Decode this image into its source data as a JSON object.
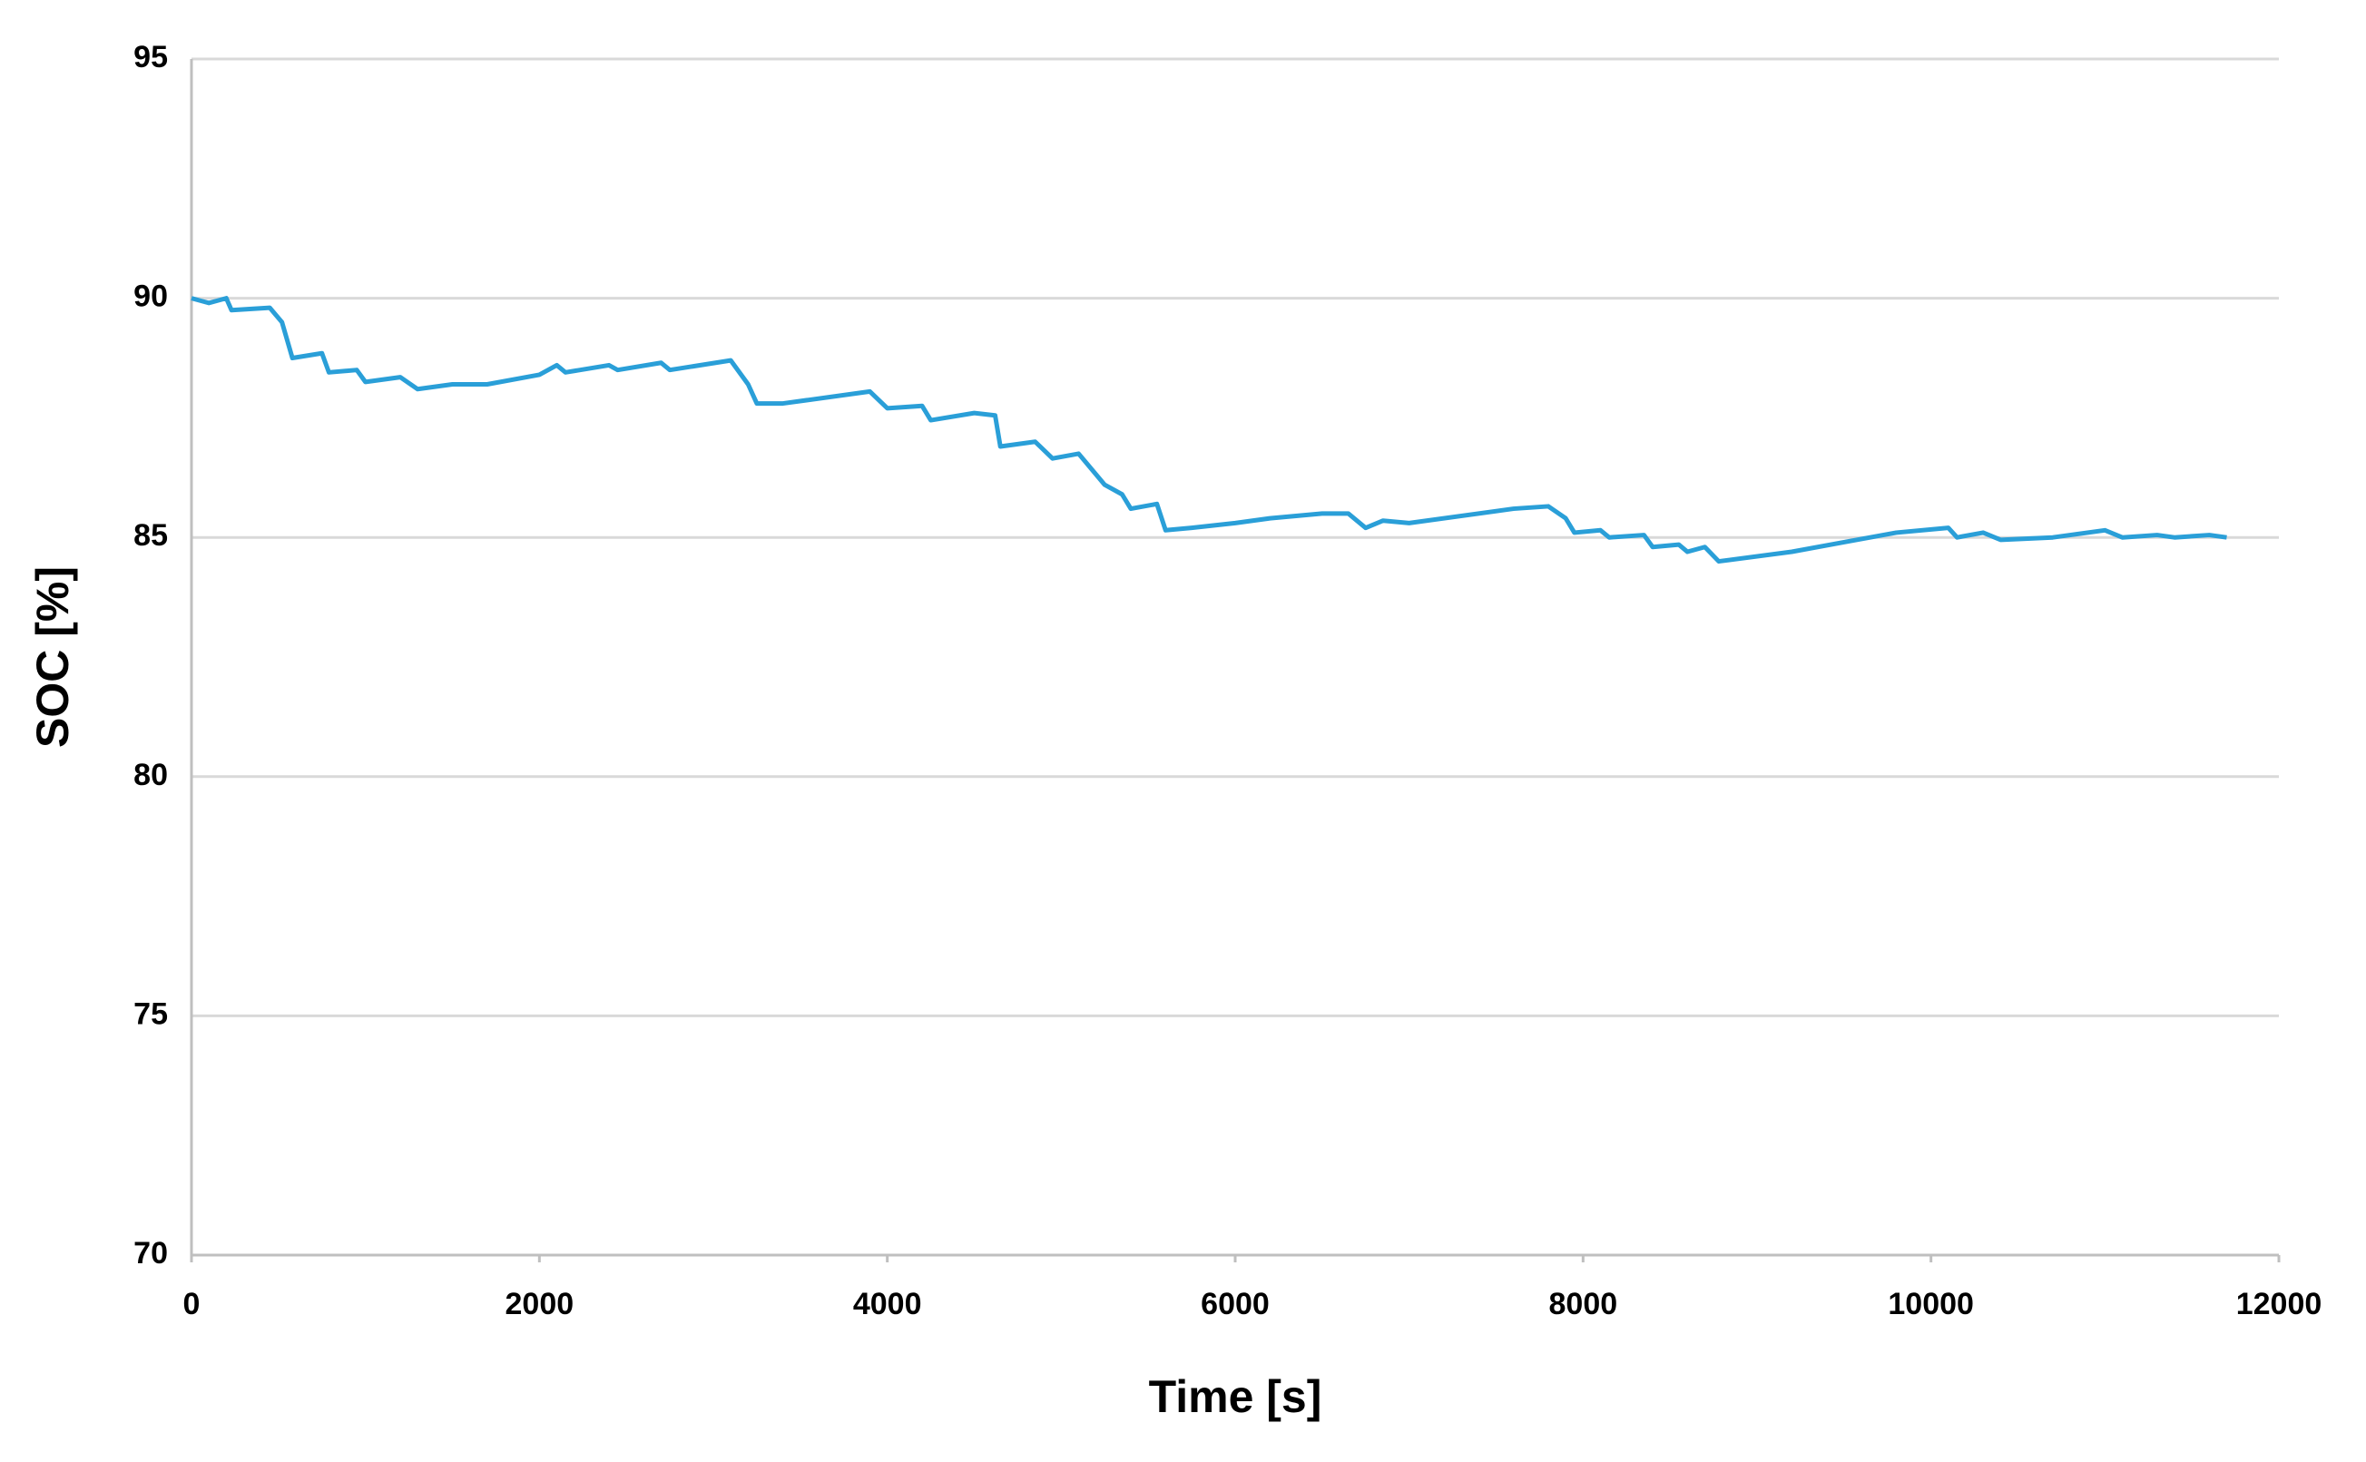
{
  "chart_data": {
    "type": "line",
    "xlabel": "Time [s]",
    "ylabel": "SOC [%]",
    "x": [
      0,
      100,
      200,
      230,
      450,
      520,
      580,
      750,
      790,
      950,
      1000,
      1200,
      1300,
      1500,
      1700,
      2000,
      2100,
      2150,
      2400,
      2450,
      2700,
      2750,
      3100,
      3200,
      3250,
      3400,
      3900,
      4000,
      4200,
      4250,
      4500,
      4620,
      4650,
      4850,
      4950,
      5100,
      5250,
      5350,
      5400,
      5550,
      5600,
      5750,
      6000,
      6200,
      6500,
      6650,
      6750,
      6850,
      7000,
      7600,
      7800,
      7900,
      7950,
      8100,
      8150,
      8350,
      8400,
      8550,
      8600,
      8700,
      8780,
      9200,
      9500,
      9800,
      10100,
      10150,
      10300,
      10400,
      10700,
      11000,
      11100,
      11300,
      11400,
      11600,
      11700
    ],
    "series": [
      {
        "color": "#2a9fd8",
        "values": [
          90.0,
          89.9,
          90.0,
          89.75,
          89.8,
          89.5,
          88.75,
          88.85,
          88.45,
          88.5,
          88.25,
          88.35,
          88.1,
          88.2,
          88.2,
          88.4,
          88.6,
          88.45,
          88.6,
          88.5,
          88.65,
          88.5,
          88.7,
          88.2,
          87.8,
          87.8,
          88.05,
          87.7,
          87.75,
          87.45,
          87.6,
          87.55,
          86.9,
          87.0,
          86.65,
          86.75,
          86.1,
          85.9,
          85.6,
          85.7,
          85.15,
          85.2,
          85.3,
          85.4,
          85.5,
          85.5,
          85.2,
          85.35,
          85.3,
          85.6,
          85.65,
          85.4,
          85.1,
          85.15,
          85.0,
          85.05,
          84.8,
          84.85,
          84.7,
          84.8,
          84.5,
          84.7,
          84.9,
          85.1,
          85.2,
          85.0,
          85.1,
          84.95,
          85.0,
          85.15,
          85.0,
          85.05,
          85.0,
          85.05,
          85.0
        ]
      }
    ],
    "xlim": [
      0,
      12000
    ],
    "xticks": [
      0,
      2000,
      4000,
      6000,
      8000,
      10000,
      12000
    ],
    "ylim": [
      70,
      95
    ],
    "yticks": [
      70,
      75,
      80,
      85,
      90,
      95
    ],
    "grid": true
  }
}
